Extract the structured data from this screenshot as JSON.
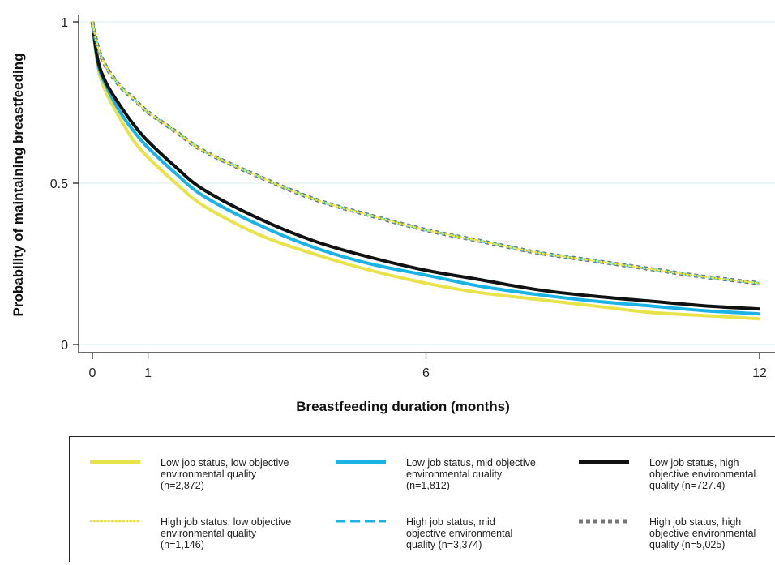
{
  "chart_data": {
    "type": "line",
    "title": "",
    "xlabel": "Breastfeeding duration (months)",
    "ylabel": "Probability of maintaining breastfeeding",
    "xlim": [
      0,
      12
    ],
    "ylim": [
      0,
      1
    ],
    "xticks": [
      0,
      1,
      6,
      12
    ],
    "yticks": [
      0,
      0.5,
      1
    ],
    "ytick_labels": [
      "0",
      "0.5",
      "1"
    ],
    "grid": "horizontal",
    "legend_position": "bottom",
    "x": [
      0,
      0.1,
      0.25,
      0.5,
      0.75,
      1,
      1.5,
      2,
      3,
      4,
      5,
      6,
      7,
      8,
      9,
      10,
      11,
      12
    ],
    "series": [
      {
        "name": "Low job status, low objective\nenvironmental quality\n(n=2,872)",
        "color": "#e8e34a",
        "style": "solid",
        "values": [
          1.0,
          0.86,
          0.78,
          0.7,
          0.63,
          0.58,
          0.5,
          0.43,
          0.34,
          0.28,
          0.23,
          0.19,
          0.16,
          0.14,
          0.12,
          0.1,
          0.09,
          0.08
        ]
      },
      {
        "name": "Low job status, mid objective\nenvironmental quality\n(n=1,812)",
        "color": "#1bb3e6",
        "style": "solid",
        "values": [
          1.0,
          0.87,
          0.8,
          0.72,
          0.66,
          0.61,
          0.53,
          0.46,
          0.37,
          0.3,
          0.25,
          0.215,
          0.18,
          0.155,
          0.135,
          0.12,
          0.105,
          0.095
        ]
      },
      {
        "name": "Low job status, high\nobjective environmental\nquality (n=727.4)",
        "color": "#111111",
        "style": "solid",
        "values": [
          1.0,
          0.88,
          0.81,
          0.74,
          0.68,
          0.63,
          0.55,
          0.48,
          0.39,
          0.32,
          0.27,
          0.23,
          0.2,
          0.17,
          0.15,
          0.135,
          0.12,
          0.11
        ]
      },
      {
        "name": "High job status, low objective\nenvironmental quality\n(n=1,146)",
        "color": "#e8e34a",
        "style": "dotted",
        "values": [
          1.0,
          0.92,
          0.86,
          0.8,
          0.76,
          0.72,
          0.66,
          0.6,
          0.52,
          0.45,
          0.4,
          0.355,
          0.32,
          0.285,
          0.26,
          0.235,
          0.21,
          0.19
        ]
      },
      {
        "name": "High job status, mid\nobjective environmental\nquality (n=3,374)",
        "color": "#1bb3e6",
        "style": "dashed",
        "values": [
          1.0,
          0.92,
          0.86,
          0.8,
          0.76,
          0.72,
          0.66,
          0.6,
          0.52,
          0.45,
          0.4,
          0.355,
          0.32,
          0.285,
          0.26,
          0.235,
          0.21,
          0.19
        ]
      },
      {
        "name": "High job status, high\nobjective environmental\nquality (n=5,025)",
        "color": "#777777",
        "style": "squaredot",
        "values": [
          1.0,
          0.92,
          0.86,
          0.8,
          0.76,
          0.72,
          0.66,
          0.6,
          0.52,
          0.45,
          0.4,
          0.355,
          0.32,
          0.285,
          0.26,
          0.235,
          0.21,
          0.19
        ]
      }
    ]
  }
}
